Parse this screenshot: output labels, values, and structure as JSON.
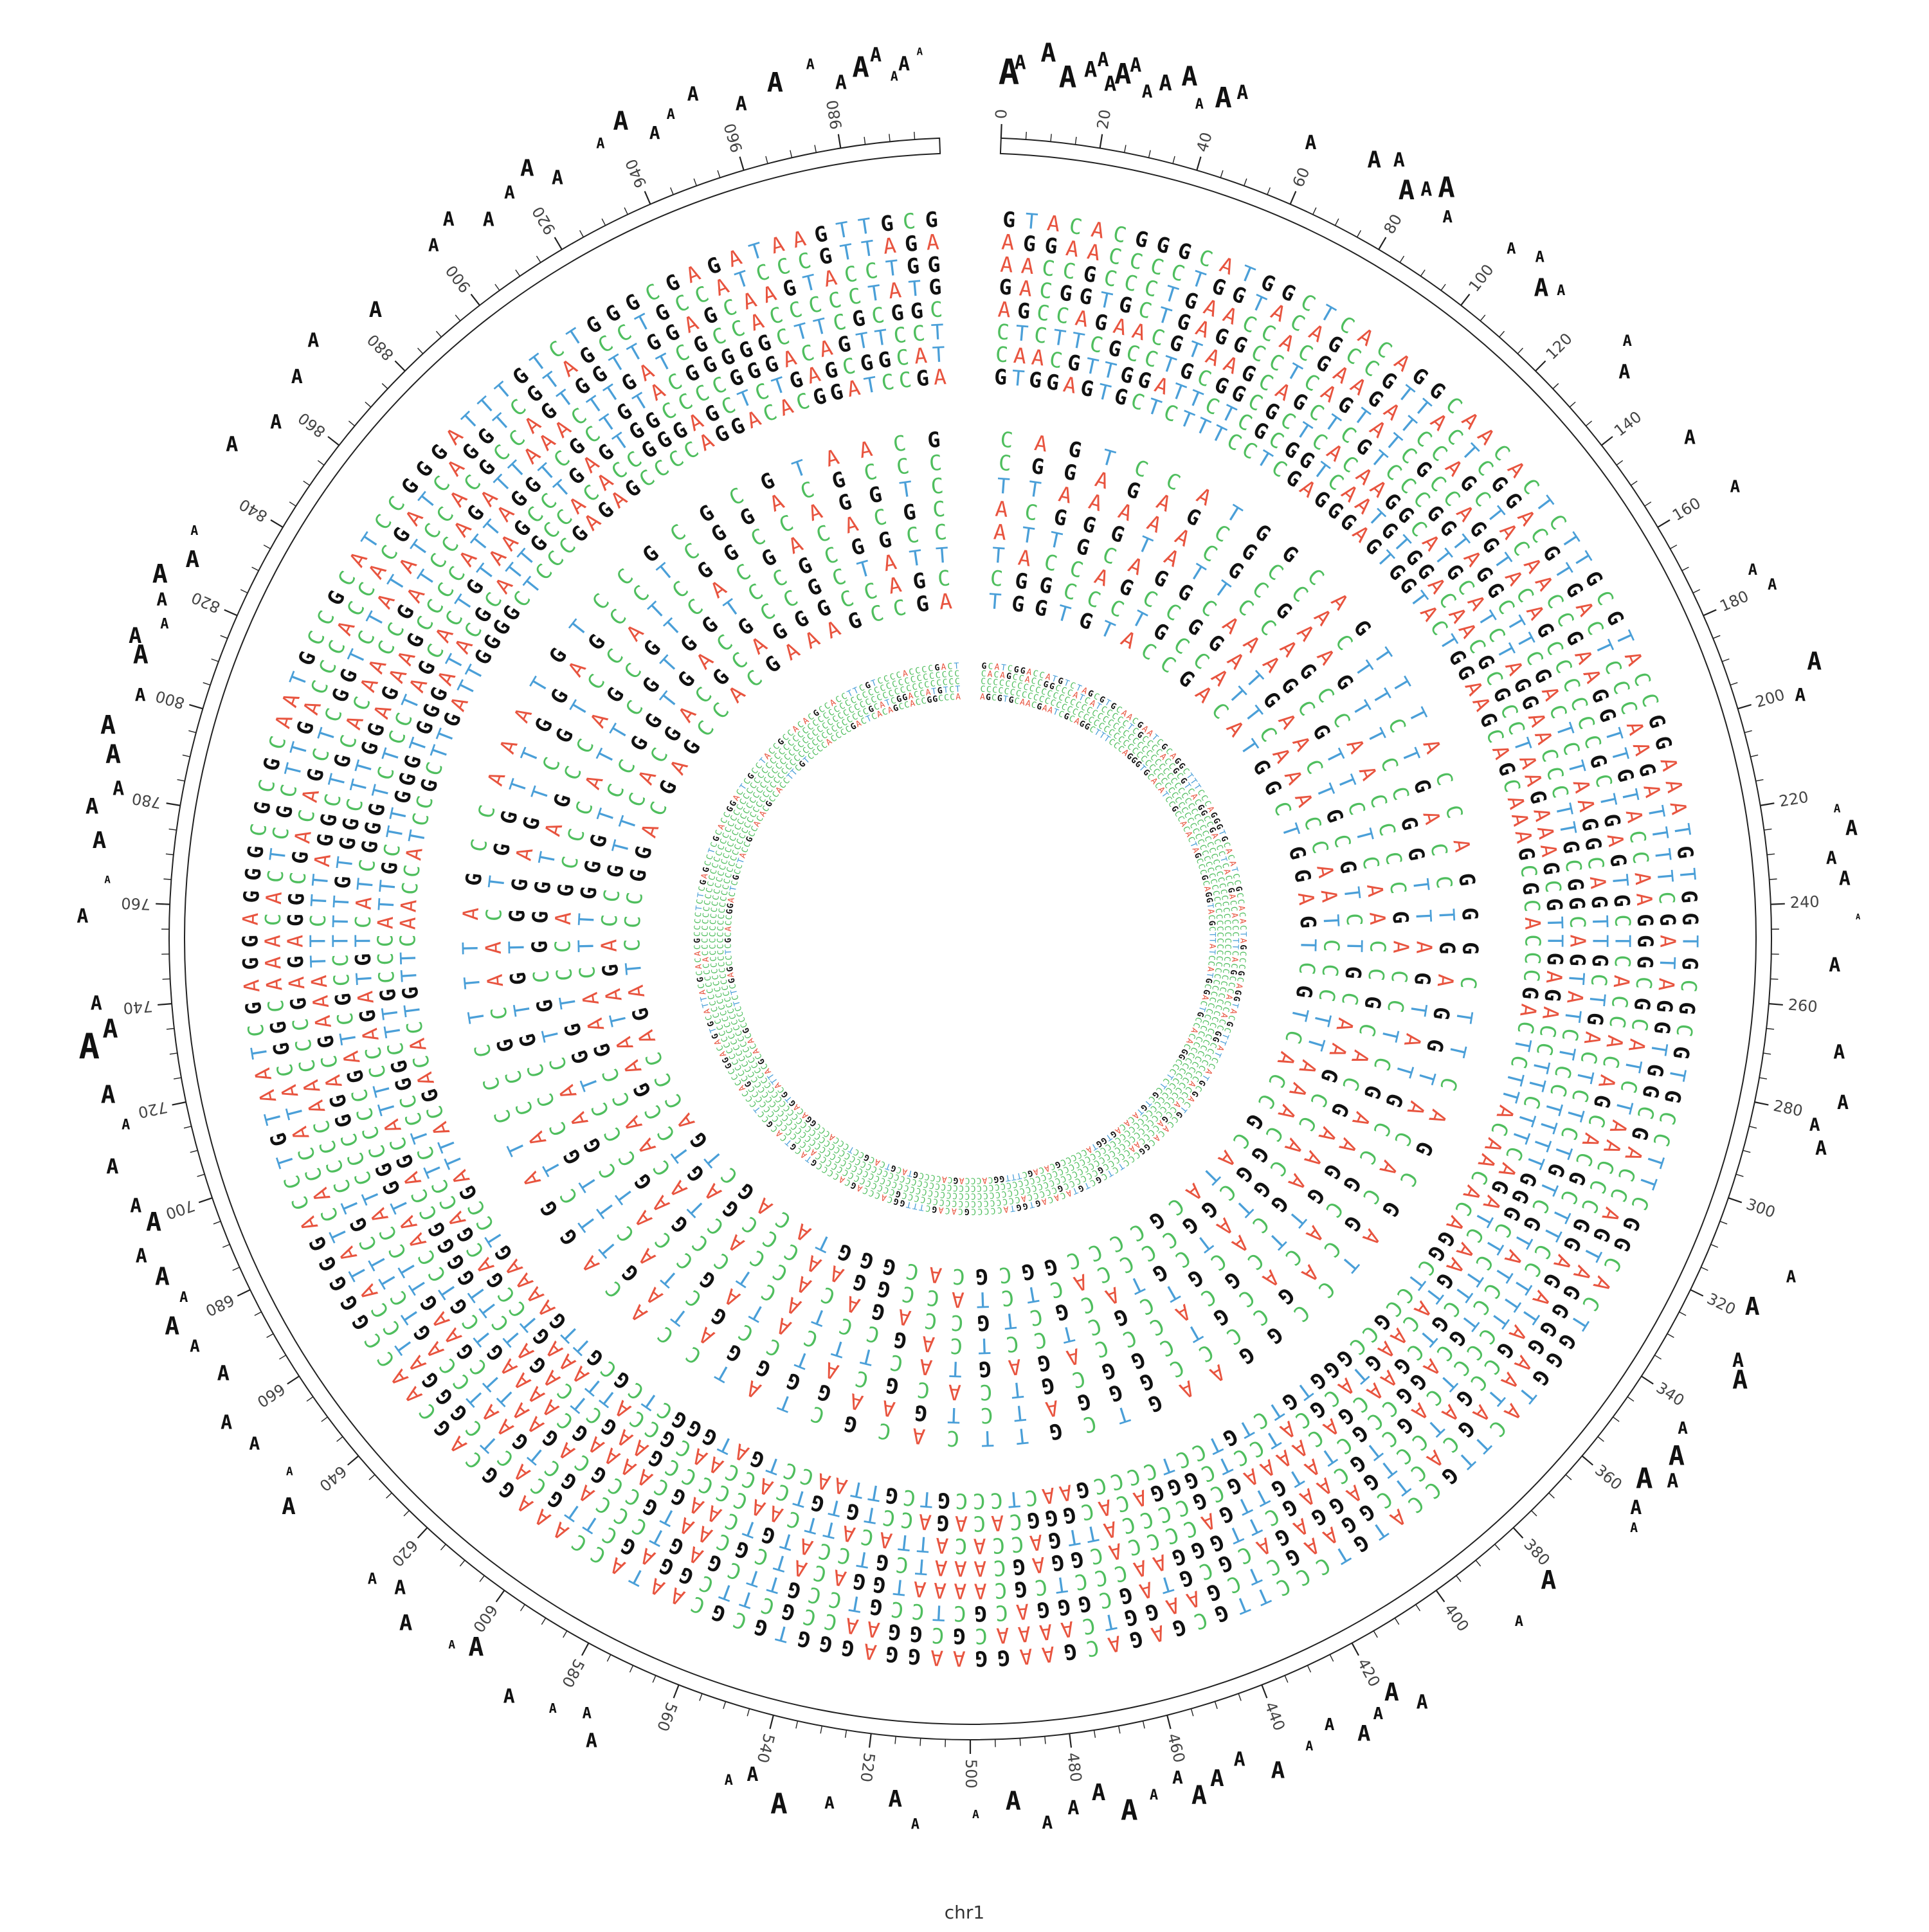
{
  "figure": {
    "caption": "chr1",
    "chromosome_length": 1000,
    "tick_label_values": [
      0,
      20,
      40,
      60,
      80,
      100,
      120,
      140,
      160,
      180,
      200,
      220,
      240,
      260,
      280,
      300,
      320,
      340,
      360,
      380,
      400,
      420,
      440,
      460,
      480,
      500,
      520,
      540,
      560,
      580,
      600,
      620,
      640,
      660,
      680,
      700,
      720,
      740,
      760,
      780,
      800,
      820,
      840,
      860,
      880,
      900,
      920,
      940,
      960,
      980
    ],
    "minor_tick_step": 5
  },
  "nucleotide_colors": {
    "A": "#E8543F",
    "C": "#4FBE5E",
    "G": "#111111",
    "T": "#4A9FD8"
  },
  "tracks": [
    {
      "name": "outer sequence band",
      "rows": 8,
      "columns_per_row": 200
    },
    {
      "name": "middle sequence band",
      "rows": 8,
      "columns_per_row": 90
    },
    {
      "name": "inner sequence band",
      "rows": 5,
      "columns_per_row": 260
    }
  ],
  "outer_letter_glyph": "A",
  "sequences": {
    "outer": "GTACACGGGCATGGCTCACAGGCAACACTCTTGCGTACCGGAAATGTGGTGCGCGTGCCTTCGGCACTGGGTACTTGCCATGTCCCTTGCGAGACGAAGGAAGGAGGGTGCGCAATACCAAAGGCAGCAACCGGGGGACCTGTAATCGAGGAGGGCGCGCAATGCCGCATCCGGGATTTGTCTGGGCGAGATAAGTTGCGAGGAACCCCTGGTACAGCCGTTACTCGGACGTGACTCCCAAGATTTTCGATAGGTGGCGACCAGTAGGGGAATAGCACTCGGAAGCTCGAAGGTCAAAACGCGGAACCGCTTCGGAGCTTGCACTCGGGATCCATATCACCATACGGCAAACACTCGCTTGACCCACCACGATCAGGTCGTAGCCTGCCATCCCGTTAGAAACCGCCCTGAACCACGAAGATCCAGCTACAACCGAAGGTTGTACCAAGGGCGCATCTAACCCGGAGATAGCCGATCCTGAGGAGACGCGTAGCGGGACGCTCCGTCCGTTCGAGTCCCAGCTGAATCCAGTCTTCGTCCCCAACCCGAGAGGCGACAGCTCGGTCTATATCCACGCCAGTGGTTGGAGCAAGTACCTGGGACGGTGCTGAGGCCTCAGTATCGCCAGGTACAGCCCCCCGCTGAGTGCTCACCACAGCACGCTTCCTTTCCCTCAGCTGCAAGCTTGGGAACCCTCGCAAAATGGACATCGCAATGCCGCAGAATTCGAAGTTCCATCCCGGACGAAATTCTTAGGCTGCACAACCGATCCAGATTAAACTTGATCGCCACCCCCTATGAGCCAGAACGTAAGCAGCTCGTCCCGGTAGGCTTCGACTCTAAGGCAGTTGCTGACTCTCTGTCGTATCCTGCAGGCCGCTATGTTGACCCCACGGAGCAAATCGTCCATGTCAAGCAAAAGCAAAAGTCGTCCAATGGCCCCGATCGCCTTTGTGGCTTGGAGAAGCCCCATTAGGTCGCTGTACGGGGGCTTCGCGGCCTCTTCGCCTGCGGCGCTCACAAGGCATGCATCTAGGAACCCTTGCGGCAGTATCTCCTTTTGGGCTCTTCGTCGAACGACAAAAGCGCCCCATTGACCACATTACATTCAACCCCCGAAGCTCAGATCTTGGGGCCAGCATTCCAGATGTCATCGGGTCTCCTAGCACTGTAAGCCTGAGTGGCCCCGGGACAGTTCCTCAACGTTGGATTCTCGCGGTCAATGTGGACAACGCGCCTAAGAAAGCGTTGAGACCTTCTTCAGATCAAGTACAAGTACGCATCCTCGGGACACGGGCACAGACCTGTGTCACCAACGCCATTAAAGTCCGACGACCTCTCCGGCTTGCCCATTGCTTGGGTGGGATACGCATTGCCACACCGGGAGCTCTGAGCGGCATGTGGAGTGCTCTTTCCTCGAGGGAGTGGTACTGGAAGCAGCAAAGCGCACCCGACTCTTACAACACAGGCTCCGCCGGGTGTCTGTCCTCCCCGAACTCCCGTCGTTAACCTGATGGGCTCGCGTTGAAAAGTCCGATTACGACACTGTTCAACCATCCGCTTGATTGGGGCTCCCGAGAGCCCCAGGACACGGATCCGAGCCGCCGCCCGGCTTAGATAGAGCCCAGATGCCACGTCCACGGTAATTTGCCGTTCAAGCCCCCGGAGCTGGTTCTCCTGACACCCCCAGCTCCGCGAGGGTTAACATATTGCCGTTAGTTCCCGTCGCGCGCAATGACAATCTGGTGCCGAACGCACTCCAAGCTCGTCGAGATCCCCGATAACTAAGGACTAGCACGCCCCTGGTCTCGCAGTGGCGAGGGAACACACCGCTCAGATACGAAACTTTAGGGCAGCGTCCGTTACTGCAGTCTGCGACGCGTCCCAGTTTCCCATGGCGCGGTTGGCTCCGTTTGCTACCAACAGGAGATCAACCTCCCGGCGGAGCTTCCGGATATTTGCCCAGCCAATGGGCCCCGCATGCCAGAACTAAACAGGGACTCATCCCGTGGGTAGTGTTCTCGAATACCCTGACTCCCAGGACTAACGTTATTGCCAGCACCTACTTCTTCGGGCGTGTAAACTGGGCTCGCTGTCGCCGTCTCGGGAATGTCTCCACTAGGCGGCTTCCTACCTCGTCACCGCGCGGCGTTACCGGTATGGTTGCGTAGCCCGAGACGCTGTATTCTCAGCATGCGGATGTCAGTGGTACAGGTTTGCAGACGATTCACGCGACGAGCTCCCTGGGGTGGCGAAAATCCCCCAAACTGAACTAGTGTCACACATCTCCATCCAGAGCCCTTCGCATTGCCAAATGGTACCAGGCCTAGACTTGAACCGTCTTGGCTCCATTCACCGCTGACTCTACATCGACCCCTTACACAAAGTCCTAACTCGCGCTGGCCCGAAGCGTGCTTTGCAATTTCTTGCGGGATCTCGGCGCCCAAGTATCAGGCTTTTGCGCCATCATCACCGAAGTCGACCGCCGGCAACTCAGGTGGGGGAGAGATCACGTCCAGCGGGGCTCGCTGATGAATCCCCTCCCACTAGGTGAGGATCCCAGACGGGGTGTGTCGTGGCACTCAGTCATCACGGTTTCCATCCATACCCACGAACCCAAAAGGGGCAATCCCGAGAGCGCCCCGTAGCCCACCACCACTTCCGTGCCGTCCATACGGCTTCTTTAGGCCCTGATCCCGACTACGTGGGGCGTCAACGACGCCGTACTCTGAAGACGAGCGGGTGCTATTGCACTCTCCGCTTCGTTGATGAACCCCGGGCTAGCACCCATCGCGTGATCACGATCTCACCAAGAACCTGATCTAGCTCAGAGTCCCCGAGCCGGAGCGTGCAACTCCGCCCTTTACGGGGCCCTCGACCAGATGAGTCCCGGAGTCGTCGGGAACGCTCGCCCCTTACCGGCGGTTCTGCAATAGGCCTTTTATGGCGCCCCAGTACGGCTTCAGATAGCACTCCACGCAGCCGGCACCCGAGTTAACACCCTTGCGGGTGACTGGGTGACATGTTCCTGCAGTATCGCTCCAGCACAGGCCCTCAACTGCGATGGCGACAGCCGTCCCAGAGCCCCGATTCAGGACTTCCGCCAAGGCTTAAACCACACGCCCCGCCCACGCGTACAAAGCAGCCAGCAGCACCGTGCACCCCAGGGTGCGCTCCCATCTCCGCCAGGGCCCCCTAAGGTAAGAGATCCCGGACCAGCGCTTTCGCGAACTGAGCCCGGGGTAACGCCTGCGGTGTATGATAACAACTTCGCGAAGGCCCCACGCGAGTGCTCCGTTGGCCTAACTCTGTCTCCCATACCCCCGAGTCGGACTTCTCGGCCCTGCACGGCAAAGCATTCTCCCTTCCCATCCAACGCAGACCCTCAAAGGAAGCGCATTTGCGTGTTTCTTCCCGTCCCAGCCTCGCCCGTGCCCCTAGCTCCACACGGAGCTCCACCACAATAATCGCATTCATTGCTCCGTTGGCGCGCCCACGTAGCTTCACGAATTCCACGGACGCTCAGAGGCTACACGACGTTTCAAATGCCGATGCCCGCAAGTAACCCTTTTGAGGAGATGCCACCGTCCGATGAAGGAAGAAACCAACCGCTCACTGATATAGAGATGCAGCGCTACTCTCCTCTAACCGACAAGGTAACTACCATGTGCGGGCGACCCCGGAGGAACATTTCCCACCGACCGATGCAGCGCTCGACTCCTATGGTACTGACCCAGCCATTTGCATCGGTCCCGCGCGACGCTTGCCCGGCTAGAATGTCGCGCTAAAGGGCAGCTCACCCCTATTTTAAGATCAGCCGTCACATCCCAGGGTTGAGCACCATGCACCATGCCCGAAGTCAACTCGACCTATCGTTCCCATTCCGGACTCAGCTTTGAGGGCGGTCTCACAATCCGCCGGCAGTTTCACTTGCCTACGCTTGGACGAAATTATGCGAGAGCGTAGGTCGCAAATGGAAGGGGCCTCGGGACCTAGGCCTAGCCGTACCCAGGGGCGACGCTTGGTGCTTACACATCCAATTTGCTCGACGAATTGCCGCTGCCCAAGTAAGCACACACTCCGCCAGTCTCAATCGTAGCGTCGCCATCAGCCGTCCCGCCCGAGCTGTCGAAACTTGCGCCGATTTGCCGTCGATGTTGTGATAGCGTTCGTTTGAAGCGGCGAACGCGACCAGAGGAGGTACCCCTCCTCGGGAACCCAGCTCAGCCCAGACCCCTTATCTCCTTCCGCACACTTCCACGCCGCCCACCAGTTAGCACAGAGACCTTCATCGATTCCAGAACTCATCAAGAGCCGGCACACGGGCCCGAGAGATATACTGCAGTGCACAGACCCCCGCCATGACCTCCCAGCTCCCTCGAGACCTCCACCACCTAGTGGCCTCTTCACTTTCCCCTGATCTTAGTCACAGTTTCATTCCCACCCATCCACCGGTCACGCCGACACTCAAGGTCCCAGATTCCAACCTCGAGCTTGGCCTTCCTCTCCGGAATAAGCGACATTTCCACCGTGTAACGTCCGAGACGCGGACCTAGCCTGTCGGGACCCCGCCTCCGTCACCCCCGCCTCCGAGGGCTCCTACGAGCCGCCTGTTCGACGAAAGTCTTAAAGGCCCCACCCTGCGGGAGCCCTCGGTGACACAAGCTAACCCCACCTGAGGCCACGCTCTCGCTACTGCTCGCCCCTCGTCACGATGTGAAACCGAATCGCCACCTTGCGCCTCCACACTCGAGGCAACGGAGGTTTCCCCACTCGAACTCGGCGGCCCTAGCATTTTCCGTCGAGGCCCCCCGACATCACCGCCCAGACGAGCCATTCTCTCGCCCCCTCGAGGGGTCCGCGCCGCGCAACTCCCACCACGCGCTCAGGCACCGATCATTCTGCCTTCCTACGACCACGCCCGGACAGCTGAATCCCTGTGCAGCTTACTTCCAACGCTCCGACAGCTCCAAGGTCGCCCCATTACTCCGCGGGGCAACCAAGCCGCTCCCCCATCAAGGCTCGAAGACTCCTAGCCCGAATGCCCAAGGTCCCGCAAAAACCCCCACCCAGTCCCACAGCCATCCTGCACCAACCCCGACCTCGAAACCCCCGGTAGCCTCTAGCCCCAGGCTTCCGCCGGAACCTCATCGATTCGCATGCCGCGACGGCCCCTCTCCACCCCCGCTCCCGTCCGGCACGATACACCCCCACTCAGGCCTCGGCCCCCCAACTGCAGATCCACCTTGACTCCTGCATACCCTGCTAGCCACCTTCCGCCTAATGCCGGCTCGCTGCGAACACACACCGGCCCCCTCAACACCGCTAAACGACCGCTGGCCCGTCGCAAGGCCCGCACAACTCTCGCCCTGCTCGCCACTCGTTCCGTAGGCCCCCAGCCTGACCTCCACCGACCTTCCACCTAATCCCAAGCCCCGGCCCCCTTGCTCCCTTCCCAGCTCCCCCCCACGCCGCCTCCCCCAAACGGCCCCACCACCCTCGTCACGAACCCCCGTCCTCCTCCCGGTCCCGCCTCACCTCCCTCCCAGCACCAACCACCCCAGGCCTCTCCCACCCTCAGCTCCACCCCCCTACCCCCCCCCACCCCCCTCCCGCCTCCCCCGCCTCGCCCCCCACCCCCCCC",
    "middle": "CAGTCCATGGCAGTTTACCAGGGCTTCAGCGATCCGGAAGTCGTTCACGCTATCCACAGGATCCCTTTAGCCAAATGTCCGCGCGTAACGCGGAGAGCGCCACTTCTGACCTGAGGTACACGCAGCCCCGGGATCTGAAGGGGATAGTTCTACCGCAACTGGTTGGAGCCTCGGACGCCCTTAAAAACGCGAAGTTCCGGTTAGTATGCCGCACACGTCGGCGTCACGCATCCGCTACTTGCCCGTGTGGAGTCGTCCATCGGCCAGGTCACGGGTATTCCAGCCAACCCCGACCTCGAAGGTTCGCACCCAGAGTACTTCATAGCCATCGAACTGCGGGTAGCCAGCGTCACGACACGCATTGCAGGCAAAGCGTTCTCAACCGCACGAAAGCACGTCGCTCCTCAGCCTACTCCGAGCCCTGGTCCAGCCCATTCGTGGTCCGCGGCCTACCAGCCGGATGAACTGCGTCTGCAAGCCACGTATCGTACGCTGCCAGACACCACTACAACCGAACTTGGGTCCGGTGACGCCGCTATTCGGCCCTGCCATTCAAACCAATCCCTTAAACGGCGGCCCCACTCTACCGGAACCCGAGTCCGAATAGACCGTTCACGACGCAGGGCCAGCTGGTGTACCGACATGGCTGGAGTCGTCACCGCATACGCCCCGGCGCACGGGTACAGCTGACCCAGATCCCGGACGAGCCACGAAAGCCGACTTAACTCCCCGACAGCGTCTGCCCGAGCGCTAGCACCGGGCATTCCACCAACGTCCCCCACGAAGTCGGTCGATTCAGTCCCACCCGCAAGCCACCCCTCCACTAAGCAAC",
    "inner": "GCATCGGACCATGTCTAGCGTGCAACGAATCGCAGGCTTTCCCAGGGTGCACATCCGCCACACTAGCCCGCAGGTACGCTTATCCATGCGACTGCCACACGGCCCTCTCGCTGTACACAGTGGTACCCCCGCACAGCTTTGGCACCCAGCACCCCGTACGTCACGCCTCCCACCCGGACAGTGCATTACGCACACGCCCCTCTCGAGCCTCGCACCGGACTCGCCTACCGCCACACGCCACCTTCGTCCCCACCCCGACTCACAGCCACCGGCCCATCATCCCCCTCGCCCCACCGCGTCACGGCCGACCCTCACCGACCACCCTTCACGCCCACCACCGGCCCCCCCACCCACCGACCCCAACCCCCGCCCCCCGCCCCCACCCCCCCCCCCCCCCCCCCGCCCCCCCCCCCCCCACCCCCCCCCCCCCCGCCCCCCCCCCCCCCCCCCCCACCCCCCCCCCCCCCCCCCCCCCCCCCCCCCCCCCCCCCCCCCCCCCCCCCCCCCCCCCCCCCCCCCCCCCCCCCCCCCCCCCCCCCCCCCCCCCCCCCCCCCCCCCCCCCCCCCCCCCCCCCCCCCCCCCCCCCCCCCCCCCCCCCCCCCCCCCCCCCCCCCCCCCCCCCCCCCCCCCCCCCCCCCCCCCCCCCCCCCCCCCCCCCCCCCCCCCCCCCCCCCCCCCCCCCCCCCCCCCCCCCCCCCCCCCCCCCCCCCCCCCCCCCCCCCCCCCCCCCCCCCCCCCCCCCCCCCCCCCCCCCCCCCCCCCCCCCCCCCCCCCCCCCCCCCCCCCCCCCCCCCCCCCCCCCCCCCCCCCCCCCCCCCCCCCCCCCCCCCCCCCCCCCCCCCCCCCCCCCCCCCCCCCCCCCCCCCCCCCCCCCCCCCCCCCCCCCCCCCCCCCCCCCCCCCCCCCCCCCCCCCCCCCCCCCCCCCCCCCCCCCCCCCCCCCCCCCCCCCCCCCCCCCCCCCCCCCCCCCCCCCCCCCCCCCCCCCCCCCCCCCCCCCCCCCCCCCCCCCCCCCCCCCCCCCC"
  },
  "outer_letters": {
    "positions": [
      1,
      3,
      8,
      12,
      16,
      18,
      20,
      22,
      24,
      27,
      30,
      34,
      37,
      41,
      44,
      59,
      71,
      75,
      79,
      82,
      85,
      88,
      101,
      106,
      110,
      113,
      128,
      132,
      149,
      161,
      176,
      180,
      196,
      201,
      223,
      227,
      232,
      236,
      243,
      252,
      268,
      277,
      282,
      286,
      310,
      318,
      328,
      331,
      344,
      349,
      353,
      356,
      361,
      364,
      382,
      391,
      414,
      418,
      422,
      426,
      431,
      436,
      443,
      449,
      454,
      458,
      461,
      466,
      471,
      476,
      481,
      486,
      492,
      499,
      510,
      514,
      526,
      535,
      541,
      545,
      571,
      574,
      580,
      588,
      598,
      602,
      611,
      616,
      621,
      641,
      646,
      654,
      660,
      668,
      675,
      680,
      684,
      689,
      694,
      699,
      703,
      711,
      718,
      724,
      733,
      736,
      741,
      757,
      764,
      771,
      777,
      781,
      787,
      792,
      799,
      806,
      809,
      813,
      817,
      821,
      826,
      831,
      848,
      856,
      865,
      872,
      884,
      900,
      905,
      911,
      917,
      922,
      926,
      936,
      941,
      946,
      950,
      955,
      963,
      970,
      977,
      982,
      986,
      989,
      992,
      994,
      997
    ],
    "sizes": [
      54,
      30,
      40,
      46,
      34,
      30,
      32,
      44,
      30,
      28,
      34,
      42,
      22,
      44,
      30,
      30,
      36,
      30,
      42,
      30,
      44,
      26,
      24,
      24,
      38,
      22,
      24,
      30,
      30,
      26,
      24,
      24,
      38,
      28,
      18,
      32,
      28,
      30,
      12,
      30,
      30,
      30,
      28,
      30,
      26,
      38,
      30,
      40,
      26,
      42,
      30,
      44,
      30,
      20,
      40,
      22,
      30,
      38,
      26,
      34,
      26,
      20,
      36,
      30,
      36,
      40,
      28,
      22,
      44,
      36,
      30,
      28,
      40,
      18,
      22,
      36,
      26,
      44,
      30,
      22,
      30,
      24,
      20,
      30,
      40,
      18,
      34,
      30,
      24,
      36,
      18,
      28,
      30,
      32,
      26,
      38,
      22,
      38,
      30,
      40,
      30,
      32,
      22,
      38,
      54,
      40,
      30,
      30,
      16,
      36,
      34,
      30,
      40,
      40,
      28,
      40,
      34,
      22,
      28,
      40,
      36,
      20,
      32,
      30,
      30,
      30,
      34,
      28,
      30,
      30,
      28,
      36,
      30,
      22,
      40,
      28,
      22,
      30,
      30,
      42,
      22,
      30,
      44,
      30,
      20,
      30,
      16
    ]
  }
}
